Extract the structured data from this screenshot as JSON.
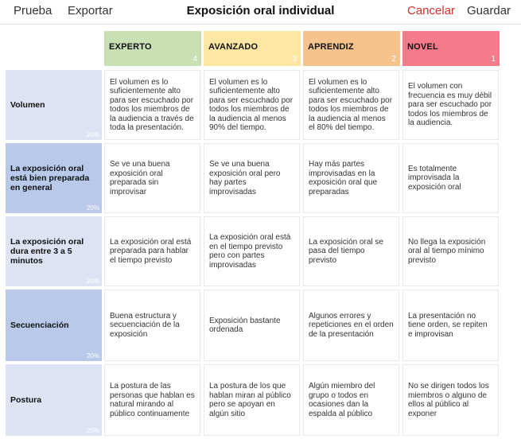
{
  "toolbar": {
    "test_label": "Prueba",
    "export_label": "Exportar",
    "title": "Exposición oral individual",
    "cancel_label": "Cancelar",
    "save_label": "Guardar"
  },
  "levels": [
    {
      "name": "EXPERTO",
      "score": "4",
      "color": "#c8e0b4"
    },
    {
      "name": "AVANZADO",
      "score": "3",
      "color": "#fde6a2"
    },
    {
      "name": "APRENDIZ",
      "score": "2",
      "color": "#f5c38b"
    },
    {
      "name": "NOVEL",
      "score": "1",
      "color": "#f67b8a"
    }
  ],
  "criteria": [
    {
      "name": "Volumen",
      "weight": "20%",
      "color": "#dde3f3",
      "descriptors": [
        "El volumen es lo suficientemente alto para ser escuchado por todos los miembros de la audiencia a través de toda la presentación.",
        "El volumen es lo suficientemente alto para ser escuchado por todos los miembros de la audiencia al menos 90% del tiempo.",
        "El volumen es lo suficientemente alto para ser escuchado por todos los miembros de la audiencia al menos el 80% del tiempo.",
        "El volumen con frecuencia es muy débil para ser escuchado por todos los miembros de la audiencia."
      ]
    },
    {
      "name": "La exposición oral está bien preparada en general",
      "weight": "20%",
      "color": "#b9c9ea",
      "descriptors": [
        "Se ve una buena exposición oral preparada sin improvisar",
        "Se ve una buena exposición oral pero hay partes improvisadas",
        "Hay más partes improvisadas en la exposición oral que preparadas",
        "Es totalmente improvisada la exposición oral"
      ]
    },
    {
      "name": "La exposición oral dura entre 3 a 5 minutos",
      "weight": "20%",
      "color": "#dde3f3",
      "descriptors": [
        "La exposición oral está preparada para hablar el tiempo previsto",
        "La exposición oral está en el tiempo previsto pero con partes improvisadas",
        "La exposición oral se pasa del tiempo previsto",
        "No llega la exposición oral al tiempo mínimo previsto"
      ]
    },
    {
      "name": "Secuenciación",
      "weight": "20%",
      "color": "#b9c9ea",
      "descriptors": [
        "Buena estructura y secuenciación de la exposición",
        "Exposición bastante ordenada",
        "Algunos errores y repeticiones en el orden de la presentación",
        "La presentación no tiene orden, se repiten e improvisan"
      ]
    },
    {
      "name": "Postura",
      "weight": "20%",
      "color": "#dde3f3",
      "descriptors": [
        "La postura de las personas que hablan es natural mirando al público continuamente",
        "La postura de los que hablan miran al público pero se apoyan en algún sitio",
        "Algún miembro del grupo o todos en ocasiones dan la espalda al público",
        "No se dirigen todos los miembros o alguno de ellos al público al exponer"
      ]
    }
  ]
}
